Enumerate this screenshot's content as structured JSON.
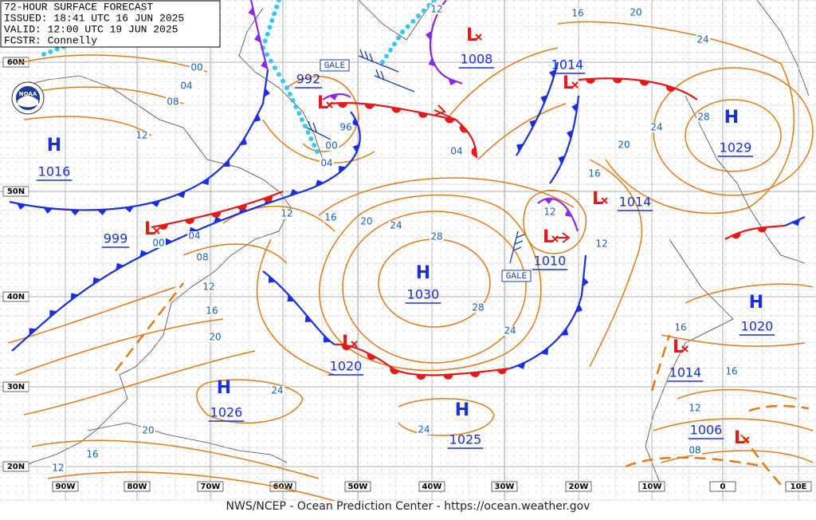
{
  "header": {
    "lines": [
      "72-HOUR SURFACE FORECAST",
      "ISSUED: 18:41 UTC 16 JUN 2025",
      "VALID: 12:00 UTC 19 JUN 2025",
      "FCSTR: Connelly"
    ]
  },
  "logo": "NOAA",
  "footer": "NWS/NCEP - Ocean Prediction Center - https://ocean.weather.gov",
  "lat_labels": [
    "60N",
    "50N",
    "40N",
    "30N",
    "20N"
  ],
  "lon_labels": [
    "90W",
    "80W",
    "70W",
    "60W",
    "50W",
    "40W",
    "30W",
    "20W",
    "10W",
    "0",
    "10E"
  ],
  "centers": [
    {
      "symbol": "H",
      "pressure": "1016"
    },
    {
      "symbol": "L",
      "pressure": "999"
    },
    {
      "symbol": "L",
      "pressure": "992"
    },
    {
      "symbol": "L",
      "pressure": "1008"
    },
    {
      "symbol": "L",
      "pressure": "1014"
    },
    {
      "symbol": "H",
      "pressure": "1029"
    },
    {
      "symbol": "L",
      "pressure": "1014"
    },
    {
      "symbol": "L",
      "pressure": "1010"
    },
    {
      "symbol": "H",
      "pressure": "1030"
    },
    {
      "symbol": "L",
      "pressure": "1020"
    },
    {
      "symbol": "H",
      "pressure": "1026"
    },
    {
      "symbol": "H",
      "pressure": "1025"
    },
    {
      "symbol": "H",
      "pressure": "1020"
    },
    {
      "symbol": "L",
      "pressure": "1014"
    },
    {
      "symbol": "L",
      "pressure": "1006"
    }
  ],
  "isobar_labels": [
    "00",
    "04",
    "08",
    "12",
    "96",
    "00",
    "04",
    "12",
    "16",
    "04",
    "00",
    "08",
    "12",
    "16",
    "20",
    "20",
    "24",
    "28",
    "28",
    "24",
    "24",
    "20",
    "16",
    "12",
    "24",
    "08",
    "12",
    "16",
    "16",
    "12",
    "12",
    "16",
    "20",
    "24",
    "28",
    "24",
    "20",
    "16",
    "04",
    "12"
  ],
  "gale_labels": [
    "GALE",
    "GALE"
  ]
}
